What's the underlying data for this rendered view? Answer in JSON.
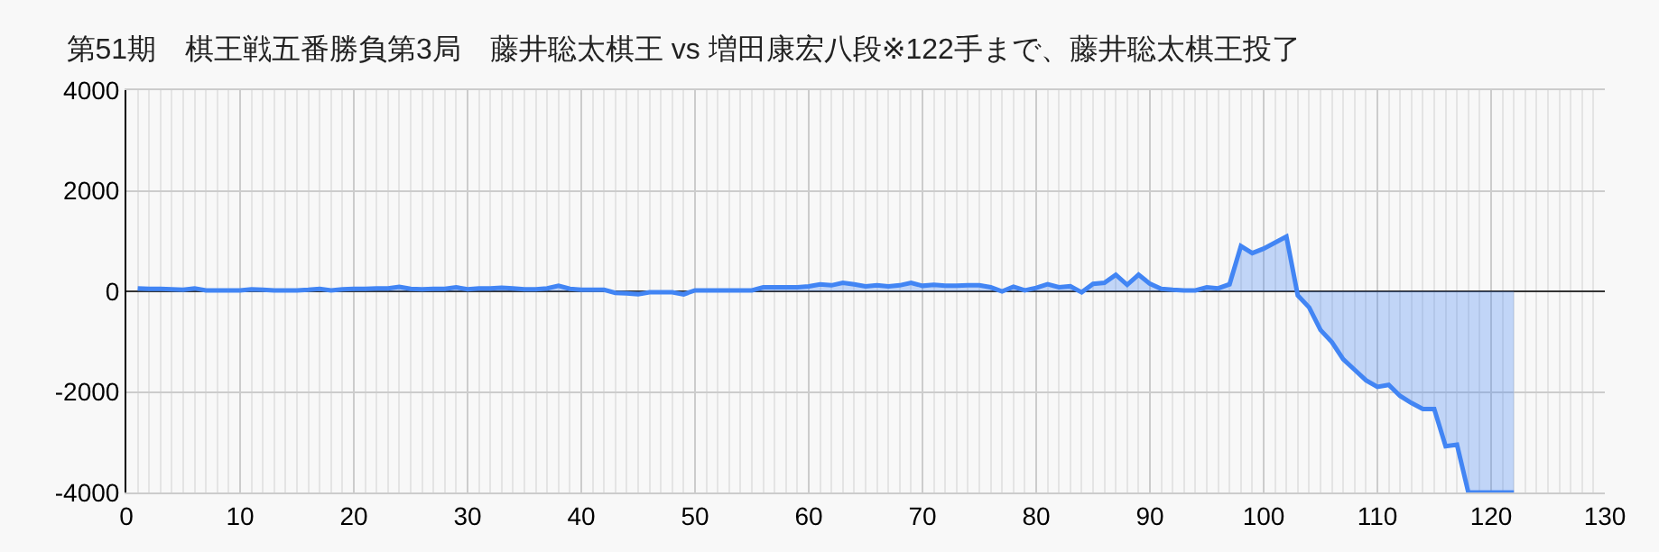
{
  "chart_data": {
    "type": "area",
    "title": "第51期　棋王戦五番勝負第3局　藤井聡太棋王 vs 増田康宏八段※122手まで、藤井聡太棋王投了",
    "x": [
      1,
      2,
      3,
      4,
      5,
      6,
      7,
      8,
      9,
      10,
      11,
      12,
      13,
      14,
      15,
      16,
      17,
      18,
      19,
      20,
      21,
      22,
      23,
      24,
      25,
      26,
      27,
      28,
      29,
      30,
      31,
      32,
      33,
      34,
      35,
      36,
      37,
      38,
      39,
      40,
      41,
      42,
      43,
      44,
      45,
      46,
      47,
      48,
      49,
      50,
      51,
      52,
      53,
      54,
      55,
      56,
      57,
      58,
      59,
      60,
      61,
      62,
      63,
      64,
      65,
      66,
      67,
      68,
      69,
      70,
      71,
      72,
      73,
      74,
      75,
      76,
      77,
      78,
      79,
      80,
      81,
      82,
      83,
      84,
      85,
      86,
      87,
      88,
      89,
      90,
      91,
      92,
      93,
      94,
      95,
      96,
      97,
      98,
      99,
      100,
      101,
      102,
      103,
      104,
      105,
      106,
      107,
      108,
      109,
      110,
      111,
      112,
      113,
      114,
      115,
      116,
      117,
      118,
      119,
      120,
      121,
      122
    ],
    "series": [
      {
        "color": "#4285f4",
        "values": [
          60,
          50,
          50,
          40,
          30,
          60,
          20,
          20,
          20,
          20,
          40,
          30,
          20,
          20,
          20,
          30,
          50,
          20,
          40,
          50,
          50,
          60,
          60,
          90,
          50,
          40,
          50,
          50,
          80,
          40,
          60,
          60,
          70,
          60,
          40,
          40,
          60,
          110,
          50,
          30,
          30,
          30,
          -30,
          -40,
          -60,
          -20,
          -20,
          -20,
          -60,
          20,
          20,
          20,
          20,
          20,
          20,
          80,
          80,
          80,
          80,
          100,
          140,
          120,
          170,
          140,
          100,
          120,
          100,
          120,
          170,
          110,
          130,
          110,
          110,
          120,
          120,
          80,
          0,
          90,
          20,
          70,
          140,
          80,
          100,
          -20,
          150,
          170,
          330,
          130,
          330,
          150,
          50,
          30,
          20,
          20,
          80,
          60,
          140,
          900,
          760,
          850,
          970,
          1090,
          -80,
          -320,
          -770,
          -1010,
          -1350,
          -1560,
          -1770,
          -1900,
          -1860,
          -2080,
          -2220,
          -2340,
          -2340,
          -3080,
          -3050,
          -4000,
          -4000,
          -4000,
          -4000,
          -4000
        ]
      }
    ],
    "xlim": [
      0,
      130
    ],
    "xticks": [
      0,
      10,
      20,
      30,
      40,
      50,
      60,
      70,
      80,
      90,
      100,
      110,
      120,
      130
    ],
    "ylim": [
      -4000,
      4000
    ],
    "yticks": [
      -4000,
      -2000,
      0,
      2000,
      4000
    ],
    "grid": true,
    "marker": "none",
    "line_style": "solid"
  }
}
